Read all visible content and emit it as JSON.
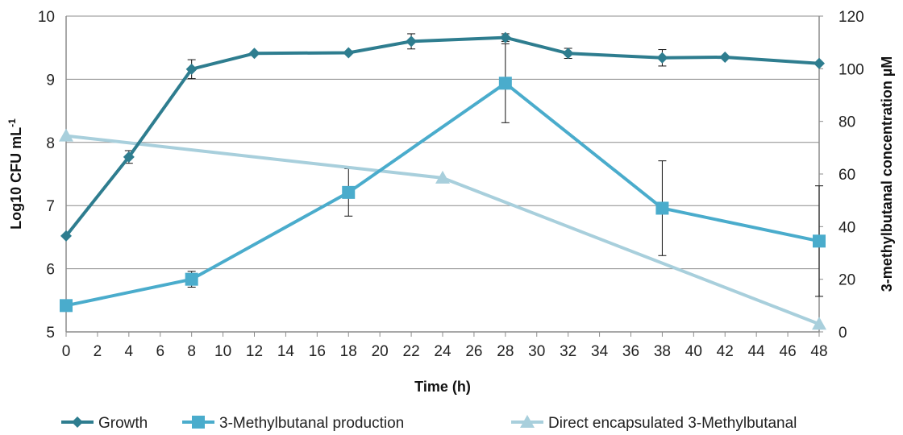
{
  "chart_data": {
    "type": "line",
    "xlabel": "Time (h)",
    "ylabel": "Log10 CFU mL",
    "ylabel_superscript": "-1",
    "y2label": "3-methylbutanal concentration µM",
    "xlim": [
      0,
      48
    ],
    "ylim": [
      5,
      10
    ],
    "y2lim": [
      0,
      120
    ],
    "x_ticks": [
      "0",
      "2",
      "4",
      "6",
      "8",
      "10",
      "12",
      "14",
      "16",
      "18",
      "20",
      "22",
      "24",
      "26",
      "28",
      "30",
      "32",
      "34",
      "36",
      "38",
      "40",
      "42",
      "44",
      "46",
      "48"
    ],
    "y_ticks": [
      "5",
      "6",
      "7",
      "8",
      "9",
      "10"
    ],
    "y2_ticks": [
      "0",
      "20",
      "40",
      "60",
      "80",
      "100",
      "120"
    ],
    "grid": true,
    "legend_position": "bottom",
    "series": [
      {
        "name": "Growth",
        "axis": "left",
        "marker": "diamond",
        "color": "#2e7d8f",
        "x": [
          0,
          4,
          8,
          12,
          18,
          22,
          28,
          32,
          38,
          42,
          48
        ],
        "y": [
          6.52,
          7.77,
          9.16,
          9.41,
          9.42,
          9.6,
          9.66,
          9.41,
          9.34,
          9.35,
          9.25
        ],
        "err": [
          0,
          0.1,
          0.15,
          0,
          0,
          0.12,
          0.06,
          0.08,
          0.13,
          0,
          0
        ]
      },
      {
        "name": "3-Methylbutanal production",
        "axis": "right",
        "marker": "square",
        "color": "#4aaccc",
        "x": [
          0,
          8,
          18,
          28,
          38,
          48
        ],
        "y": [
          10,
          20,
          53,
          94.5,
          47,
          34.5
        ],
        "err": [
          0,
          3,
          9,
          15,
          18,
          21
        ]
      },
      {
        "name": "Direct encapsulated 3-Methylbutanal",
        "axis": "right",
        "marker": "triangle",
        "color": "#a8cfdc",
        "x": [
          0,
          24,
          48
        ],
        "y": [
          74.5,
          58.5,
          3
        ],
        "err": [
          0,
          0,
          0
        ]
      }
    ]
  }
}
